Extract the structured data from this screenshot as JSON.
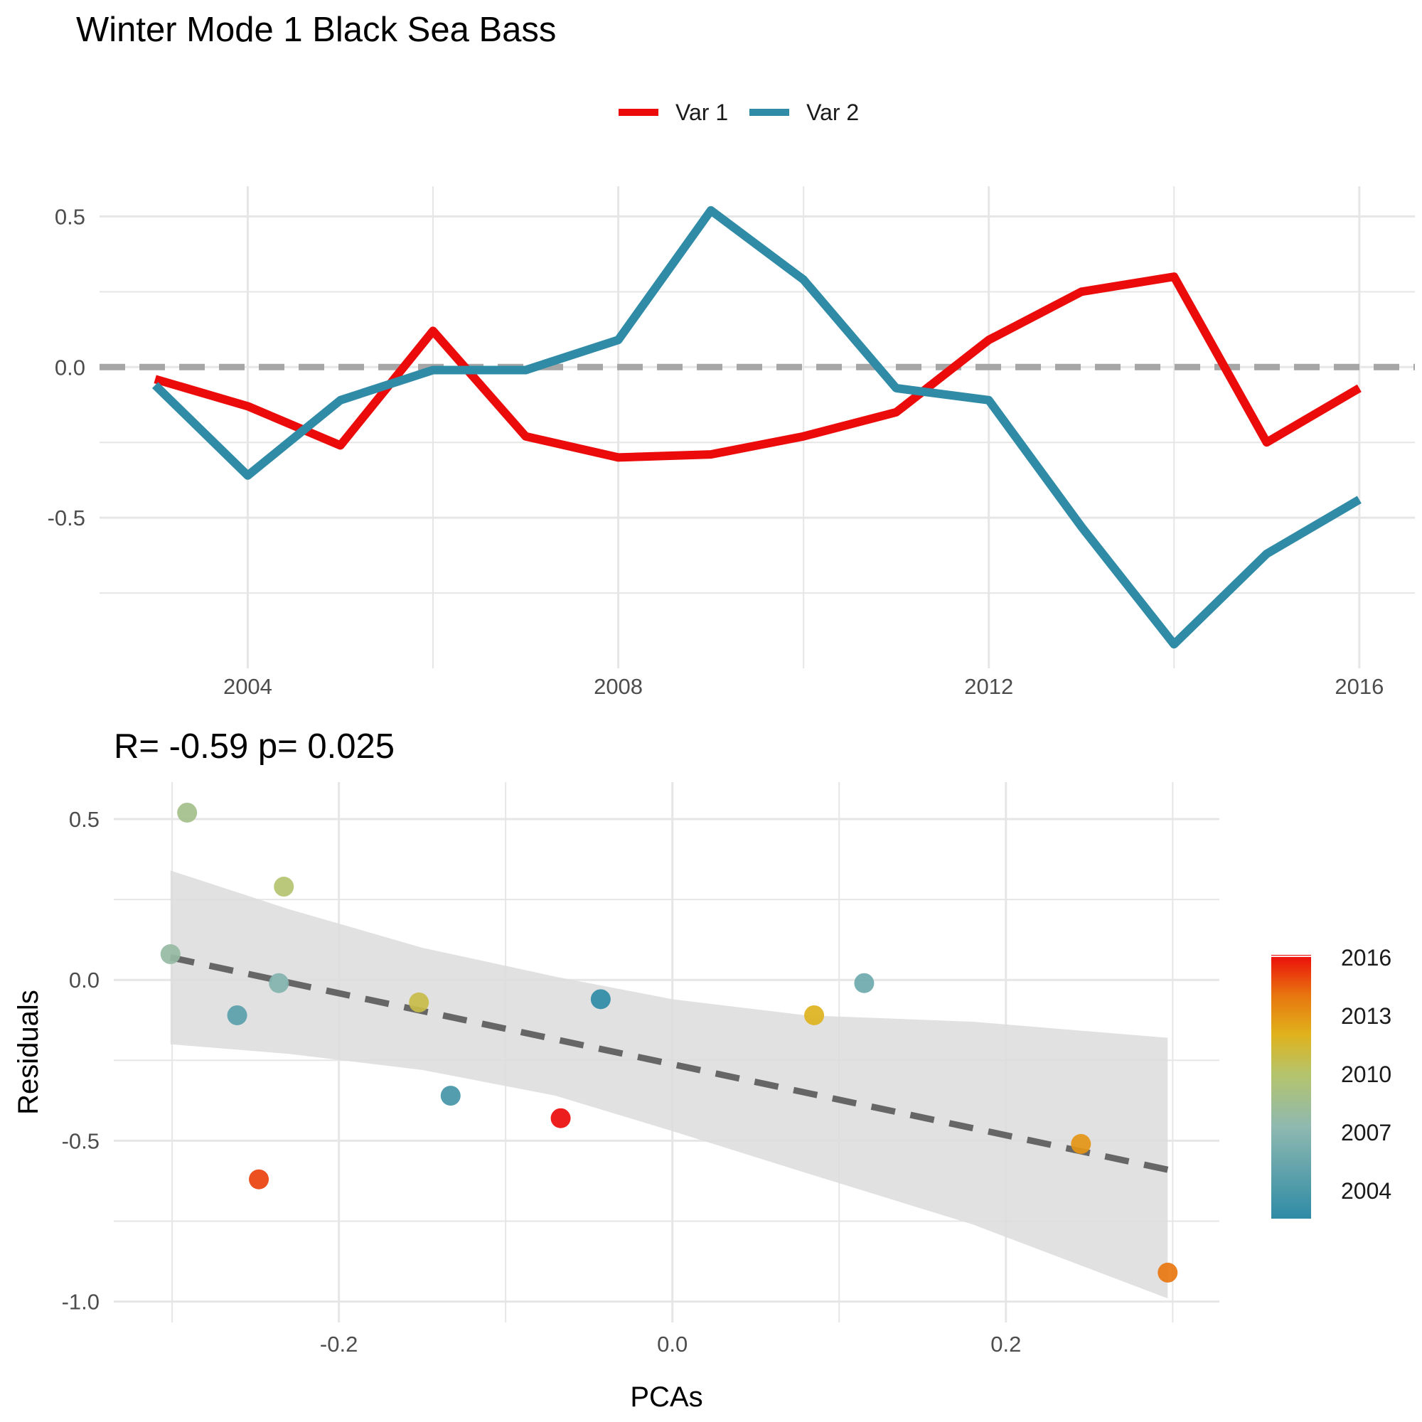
{
  "title": "Winter Mode 1 Black Sea Bass",
  "colors": {
    "var1": "#ec0b0b",
    "var2": "#2f8ba6",
    "grid": "#e6e6e6",
    "zero_line": "#a6a6a6",
    "band": "#dcdcdc",
    "fit": "#666666"
  },
  "chart_data": [
    {
      "type": "line",
      "title": "",
      "xlabel": "",
      "ylabel": "",
      "xlim": [
        2002.4,
        2016.6
      ],
      "ylim": [
        -1.0,
        0.6
      ],
      "x_ticks": [
        2004,
        2008,
        2012,
        2016
      ],
      "y_ticks": [
        -0.5,
        0.0,
        0.5
      ],
      "y_tick_labels": [
        "-0.5",
        "0.0",
        "0.5"
      ],
      "legend": {
        "position": "top",
        "entries": [
          "Var 1",
          "Var 2"
        ]
      },
      "grid": true,
      "reference_line": {
        "y": 0.0,
        "style": "dashed"
      },
      "x": [
        2003,
        2004,
        2005,
        2006,
        2007,
        2008,
        2009,
        2010,
        2011,
        2012,
        2013,
        2014,
        2015,
        2016
      ],
      "series": [
        {
          "name": "Var 1",
          "values": [
            -0.04,
            -0.13,
            -0.26,
            0.12,
            -0.23,
            -0.3,
            -0.29,
            -0.23,
            -0.15,
            0.09,
            0.25,
            0.3,
            -0.25,
            -0.07
          ]
        },
        {
          "name": "Var 2",
          "values": [
            -0.06,
            -0.36,
            -0.11,
            -0.01,
            -0.01,
            0.09,
            0.52,
            0.29,
            -0.07,
            -0.11,
            -0.53,
            -0.92,
            -0.62,
            -0.44
          ]
        }
      ]
    },
    {
      "type": "scatter",
      "title": "R= -0.59  p= 0.025",
      "xlabel": "PCAs",
      "ylabel": "Residuals",
      "xlim": [
        -0.335,
        0.328
      ],
      "ylim": [
        -1.065,
        0.615
      ],
      "x_ticks": [
        -0.2,
        0.0,
        0.2
      ],
      "x_tick_labels": [
        "-0.2",
        "0.0",
        "0.2"
      ],
      "y_ticks": [
        -1.0,
        -0.5,
        0.0,
        0.5
      ],
      "y_tick_labels": [
        "-1.0",
        "-0.5",
        "0.0",
        "0.5"
      ],
      "grid": true,
      "points": [
        {
          "x": -0.291,
          "y": 0.52,
          "year": 2009
        },
        {
          "x": -0.233,
          "y": 0.29,
          "year": 2010
        },
        {
          "x": -0.301,
          "y": 0.08,
          "year": 2008
        },
        {
          "x": -0.236,
          "y": -0.01,
          "year": 2007
        },
        {
          "x": -0.261,
          "y": -0.11,
          "year": 2005
        },
        {
          "x": -0.152,
          "y": -0.07,
          "year": 2011
        },
        {
          "x": -0.133,
          "y": -0.36,
          "year": 2004
        },
        {
          "x": -0.248,
          "y": -0.62,
          "year": 2015
        },
        {
          "x": -0.067,
          "y": -0.43,
          "year": 2016
        },
        {
          "x": -0.043,
          "y": -0.06,
          "year": 2003
        },
        {
          "x": 0.085,
          "y": -0.11,
          "year": 2012
        },
        {
          "x": 0.115,
          "y": -0.01,
          "year": 2006
        },
        {
          "x": 0.245,
          "y": -0.51,
          "year": 2013
        },
        {
          "x": 0.297,
          "y": -0.91,
          "year": 2014
        }
      ],
      "fit_line": {
        "style": "dashed",
        "x": [
          -0.301,
          0.297
        ],
        "y": [
          0.07,
          -0.59
        ]
      },
      "confidence_band": {
        "x": [
          -0.301,
          -0.23,
          -0.15,
          -0.07,
          0.0,
          0.08,
          0.18,
          0.297
        ],
        "upper": [
          0.34,
          0.22,
          0.1,
          0.01,
          -0.06,
          -0.11,
          -0.13,
          -0.18
        ],
        "lower": [
          -0.2,
          -0.23,
          -0.28,
          -0.36,
          -0.47,
          -0.6,
          -0.76,
          -0.99
        ]
      },
      "colorbar": {
        "label": "",
        "ticks": [
          2004,
          2007,
          2010,
          2013,
          2016
        ],
        "tick_labels": [
          "2016",
          "2013",
          "2010",
          "2007",
          "2004"
        ],
        "range": [
          2003,
          2016
        ],
        "stops": [
          "#2f8ba6",
          "#8fb9b0",
          "#b5c46b",
          "#e0b21b",
          "#e8740f",
          "#ec0b0b"
        ]
      }
    }
  ]
}
